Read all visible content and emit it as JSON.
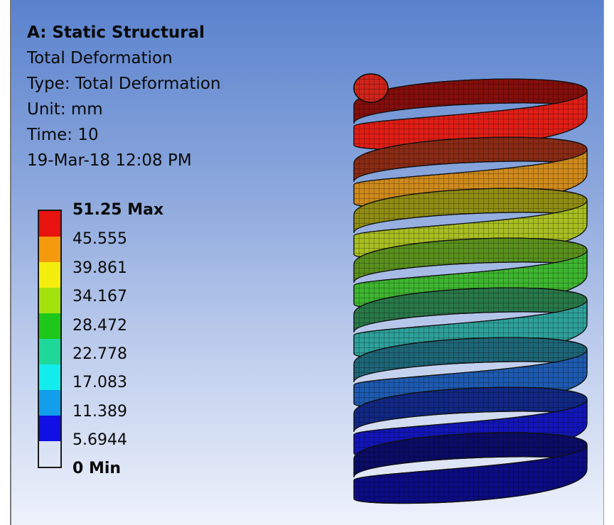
{
  "info": {
    "title": "A: Static Structural",
    "result_name": "Total Deformation",
    "type": "Type: Total Deformation",
    "unit": "Unit: mm",
    "time": "Time: 10",
    "timestamp": "19-Mar-18 12:08 PM"
  },
  "legend": {
    "labels": [
      "51.25 Max",
      "45.555",
      "39.861",
      "34.167",
      "28.472",
      "22.778",
      "17.083",
      "11.389",
      "5.6944",
      "0 Min"
    ],
    "colors": [
      "#e8120e",
      "#f49a0c",
      "#f4ee0e",
      "#a4e20e",
      "#1ec81a",
      "#1ed89a",
      "#12ecec",
      "#129eea",
      "#1010e6"
    ]
  },
  "model": {
    "name": "spring-model"
  }
}
